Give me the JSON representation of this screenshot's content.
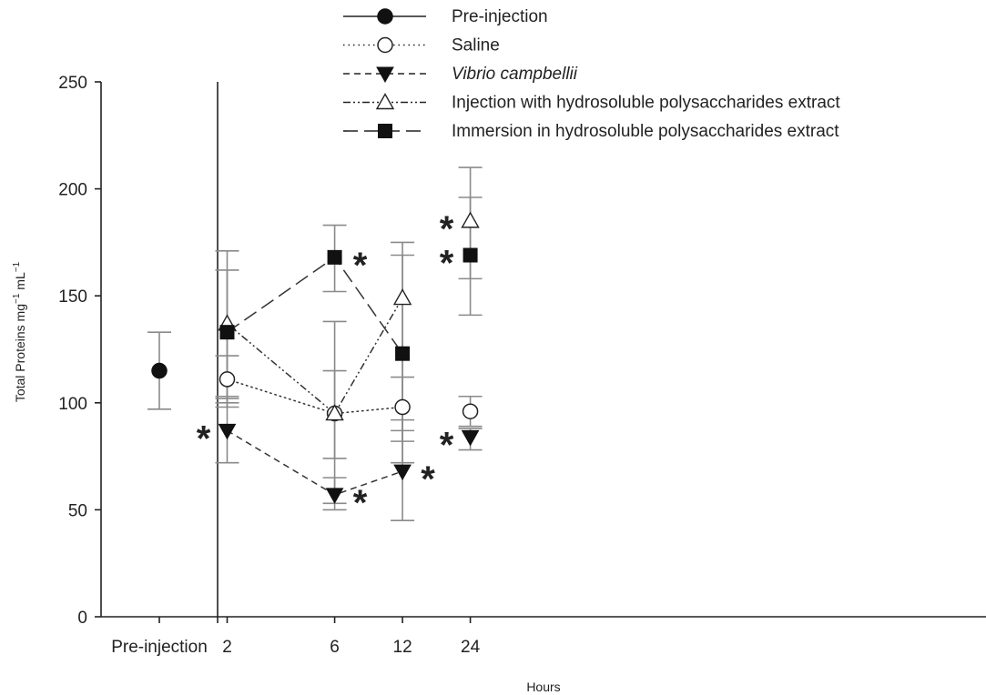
{
  "chart_data": {
    "type": "scatter",
    "title": "",
    "xlabel": "Hours",
    "ylabel_main": "Total Proteins mg",
    "ylabel_exp1": "−1",
    "ylabel_mid": " mL",
    "ylabel_exp2": "−1",
    "ylim": [
      0,
      250
    ],
    "yticks": [
      0,
      50,
      100,
      150,
      200,
      250
    ],
    "categories": [
      "Pre-injection",
      "2",
      "6",
      "12",
      "24"
    ],
    "x": [
      2,
      6,
      12,
      24
    ],
    "grid": false,
    "legend_position": "top",
    "significance_marker": "*",
    "pre_injection": {
      "name": "Pre-injection",
      "value": 115,
      "err_low": 97,
      "err_high": 133
    },
    "series": [
      {
        "name": "Saline",
        "marker": "circle-open",
        "line": "dotted",
        "values": [
          111,
          95,
          98,
          96
        ],
        "err_low": [
          100,
          74,
          87,
          89
        ],
        "err_high": [
          122,
          115,
          112,
          103
        ],
        "significant": [
          false,
          false,
          false,
          false
        ]
      },
      {
        "name": "Vibrio campbellii",
        "marker": "triangle-down-filled",
        "line": "dashed",
        "values": [
          87,
          57,
          68,
          84
        ],
        "err_low": [
          72,
          50,
          45,
          78
        ],
        "err_high": [
          102,
          65,
          92,
          88
        ],
        "significant": [
          true,
          true,
          true,
          true
        ]
      },
      {
        "name": "Injection with hydrosoluble polysaccharides extract",
        "marker": "triangle-up-open",
        "line": "dashdotdot",
        "values": [
          137,
          95,
          149,
          185
        ],
        "err_low": [
          103,
          53,
          82,
          158
        ],
        "err_high": [
          171,
          138,
          175,
          210
        ],
        "significant": [
          false,
          false,
          false,
          true
        ]
      },
      {
        "name": "Immersion in hydrosoluble polysaccharides extract",
        "marker": "square-filled",
        "line": "longdash",
        "values": [
          133,
          168,
          123,
          169
        ],
        "err_low": [
          98,
          152,
          72,
          141
        ],
        "err_high": [
          162,
          183,
          169,
          196
        ],
        "significant": [
          false,
          true,
          false,
          true
        ]
      }
    ]
  }
}
